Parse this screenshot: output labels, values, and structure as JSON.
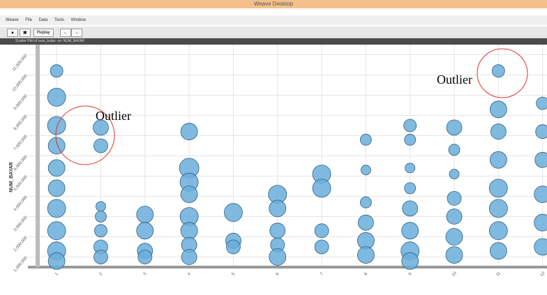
{
  "window": {
    "title": "Weave Desktop",
    "menu": [
      "Weave",
      "File",
      "Data",
      "Tools",
      "Window"
    ],
    "toolbar": {
      "replay": "Replay"
    },
    "panel_title": "Scatter Plot of num_bulan -vs- NUM_BAYAR"
  },
  "chart_data": {
    "type": "scatter",
    "ylabel": "NUM_BAYAR",
    "annotations": [
      "Outlier",
      "Outlier"
    ],
    "color": "#6aaedb",
    "x": [
      1,
      1,
      1,
      1,
      1,
      1,
      1,
      1,
      1,
      1,
      2,
      2,
      2,
      2,
      2,
      2,
      2,
      3,
      3,
      3,
      3,
      4,
      4,
      4,
      4,
      4,
      4,
      4,
      4,
      5,
      5,
      5,
      6,
      6,
      6,
      6,
      6,
      7,
      7,
      7,
      7,
      8,
      8,
      8,
      8,
      8,
      8,
      9,
      9,
      9,
      9,
      9,
      9,
      9,
      9,
      10,
      10,
      10,
      10,
      10,
      10,
      10,
      11,
      11,
      11,
      11,
      11,
      11,
      11,
      11,
      12,
      12,
      12,
      12,
      12,
      12
    ],
    "values": [
      10200000,
      8900000,
      7500000,
      6500000,
      5400000,
      4400000,
      3400000,
      2300000,
      1300000,
      800000,
      7400000,
      6500000,
      3500000,
      3000000,
      2300000,
      1500000,
      1000000,
      3100000,
      2300000,
      1300000,
      1000000,
      7200000,
      5400000,
      4700000,
      4100000,
      3000000,
      2300000,
      1600000,
      1000000,
      3200000,
      1800000,
      1500000,
      4100000,
      3400000,
      2300000,
      1600000,
      1000000,
      5100000,
      4400000,
      2300000,
      1500000,
      6800000,
      5300000,
      3700000,
      2700000,
      1800000,
      1100000,
      7500000,
      6800000,
      5400000,
      4400000,
      3400000,
      2300000,
      1300000,
      800000,
      7400000,
      6300000,
      5100000,
      3900000,
      3000000,
      2000000,
      1100000,
      10200000,
      8300000,
      7200000,
      5800000,
      4400000,
      3400000,
      2300000,
      1300000,
      8600000,
      7200000,
      5800000,
      4100000,
      2700000,
      1500000
    ],
    "sizes": [
      9,
      13,
      13,
      12,
      12,
      12,
      13,
      13,
      13,
      12,
      11,
      10,
      7,
      8,
      9,
      10,
      10,
      12,
      12,
      11,
      10,
      12,
      14,
      13,
      12,
      13,
      12,
      11,
      11,
      13,
      11,
      10,
      13,
      12,
      11,
      10,
      12,
      13,
      13,
      10,
      10,
      8,
      7,
      8,
      11,
      12,
      12,
      9,
      8,
      7,
      8,
      11,
      12,
      13,
      12,
      11,
      8,
      7,
      10,
      11,
      12,
      12,
      9,
      12,
      11,
      12,
      13,
      13,
      13,
      12,
      9,
      10,
      11,
      12,
      12,
      12
    ],
    "xlim": [
      0.35,
      12.1
    ],
    "xticks": [
      1,
      2,
      3,
      4,
      5,
      6,
      7,
      8,
      9,
      10,
      11,
      12
    ],
    "ylim": [
      500000,
      11500000
    ],
    "yticks": [
      {
        "value": 1000000,
        "label": "1,000,000"
      },
      {
        "value": 2000000,
        "label": "2,000,000"
      },
      {
        "value": 3000000,
        "label": "3,000,000"
      },
      {
        "value": 4000000,
        "label": "4,000,000"
      },
      {
        "value": 5000000,
        "label": "5,000,000"
      },
      {
        "value": 6000000,
        "label": "6,000,000"
      },
      {
        "value": 7000000,
        "label": "7,000,000"
      },
      {
        "value": 8000000,
        "label": "8,000,000"
      },
      {
        "value": 9000000,
        "label": "9,000,000"
      },
      {
        "value": 10000000,
        "label": "10,000,000"
      },
      {
        "value": 11000000,
        "label": "11,000,000"
      }
    ],
    "grid": true
  }
}
